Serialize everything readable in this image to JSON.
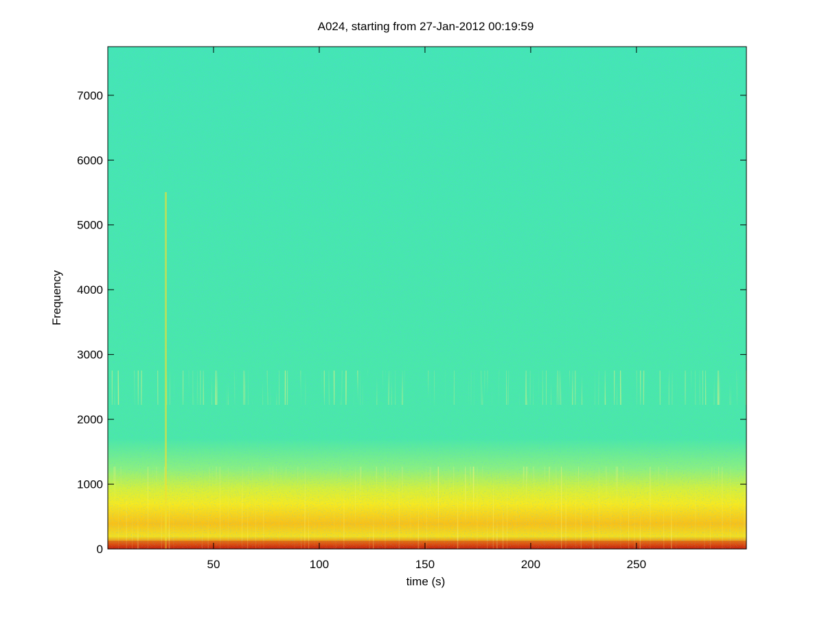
{
  "chart_data": {
    "type": "spectrogram",
    "title": "A024, starting from 27-Jan-2012 00:19:59",
    "xlabel": "time (s)",
    "ylabel": "Frequency",
    "xlim": [
      0,
      302
    ],
    "ylim": [
      0,
      7750
    ],
    "xticks": [
      50,
      100,
      150,
      200,
      250
    ],
    "yticks": [
      0,
      1000,
      2000,
      3000,
      4000,
      5000,
      6000,
      7000
    ]
  }
}
